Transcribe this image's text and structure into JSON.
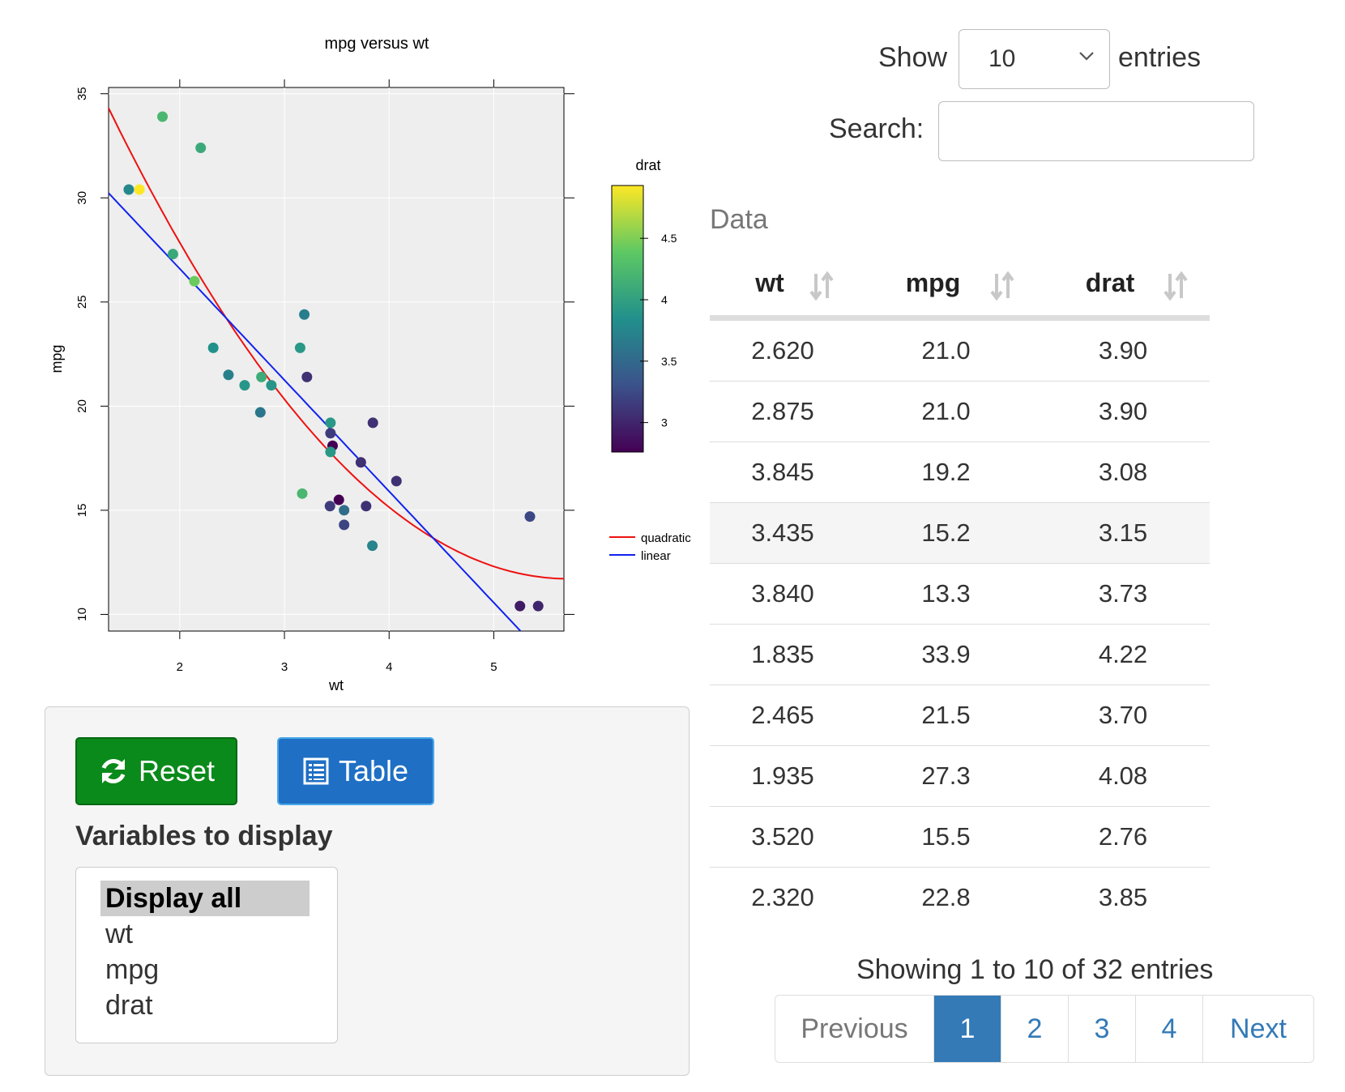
{
  "chart_data": {
    "type": "scatter",
    "title": "mpg versus wt",
    "xlabel": "wt",
    "ylabel": "mpg",
    "xlim": [
      1.32,
      5.67
    ],
    "ylim": [
      9.2,
      35.3
    ],
    "xticks": [
      2,
      3,
      4,
      5
    ],
    "yticks": [
      10,
      15,
      20,
      25,
      30,
      35
    ],
    "grid": true,
    "color_variable": "drat",
    "colorbar": {
      "title": "drat",
      "range": [
        2.76,
        4.93
      ],
      "ticks": [
        3,
        3.5,
        4,
        4.5
      ]
    },
    "points": [
      {
        "wt": 2.62,
        "mpg": 21.0,
        "drat": 3.9
      },
      {
        "wt": 2.875,
        "mpg": 21.0,
        "drat": 3.9
      },
      {
        "wt": 2.32,
        "mpg": 22.8,
        "drat": 3.85
      },
      {
        "wt": 3.215,
        "mpg": 21.4,
        "drat": 3.08
      },
      {
        "wt": 3.44,
        "mpg": 18.7,
        "drat": 3.15
      },
      {
        "wt": 3.46,
        "mpg": 18.1,
        "drat": 2.76
      },
      {
        "wt": 3.57,
        "mpg": 14.3,
        "drat": 3.21
      },
      {
        "wt": 3.19,
        "mpg": 24.4,
        "drat": 3.69
      },
      {
        "wt": 3.15,
        "mpg": 22.8,
        "drat": 3.92
      },
      {
        "wt": 3.44,
        "mpg": 19.2,
        "drat": 3.92
      },
      {
        "wt": 3.44,
        "mpg": 17.8,
        "drat": 3.92
      },
      {
        "wt": 4.07,
        "mpg": 16.4,
        "drat": 3.07
      },
      {
        "wt": 3.73,
        "mpg": 17.3,
        "drat": 3.07
      },
      {
        "wt": 3.78,
        "mpg": 15.2,
        "drat": 3.07
      },
      {
        "wt": 5.25,
        "mpg": 10.4,
        "drat": 2.93
      },
      {
        "wt": 5.424,
        "mpg": 10.4,
        "drat": 3.0
      },
      {
        "wt": 5.345,
        "mpg": 14.7,
        "drat": 3.23
      },
      {
        "wt": 2.2,
        "mpg": 32.4,
        "drat": 4.08
      },
      {
        "wt": 1.615,
        "mpg": 30.4,
        "drat": 4.93
      },
      {
        "wt": 1.835,
        "mpg": 33.9,
        "drat": 4.22
      },
      {
        "wt": 2.465,
        "mpg": 21.5,
        "drat": 3.7
      },
      {
        "wt": 3.52,
        "mpg": 15.5,
        "drat": 2.76
      },
      {
        "wt": 3.435,
        "mpg": 15.2,
        "drat": 3.15
      },
      {
        "wt": 3.84,
        "mpg": 13.3,
        "drat": 3.73
      },
      {
        "wt": 3.845,
        "mpg": 19.2,
        "drat": 3.08
      },
      {
        "wt": 1.935,
        "mpg": 27.3,
        "drat": 4.08
      },
      {
        "wt": 2.14,
        "mpg": 26.0,
        "drat": 4.43
      },
      {
        "wt": 1.513,
        "mpg": 30.4,
        "drat": 3.77
      },
      {
        "wt": 3.17,
        "mpg": 15.8,
        "drat": 4.22
      },
      {
        "wt": 2.77,
        "mpg": 19.7,
        "drat": 3.62
      },
      {
        "wt": 3.57,
        "mpg": 15.0,
        "drat": 3.54
      },
      {
        "wt": 2.78,
        "mpg": 21.4,
        "drat": 4.11
      }
    ],
    "fits": [
      {
        "name": "quadratic",
        "color": "#ee1111",
        "coefficients": [
          49.93,
          -13.38,
          1.171
        ]
      },
      {
        "name": "linear",
        "color": "#1122ee",
        "coefficients": [
          37.285,
          -5.344
        ]
      }
    ]
  },
  "controls": {
    "reset_label": "Reset",
    "table_label": "Table",
    "reset_icon": "refresh-icon",
    "table_icon": "list-alt-icon",
    "variables_label": "Variables to display",
    "variable_options": [
      "Display all",
      "wt",
      "mpg",
      "drat"
    ],
    "selected_option": "Display all"
  },
  "table": {
    "length_prefix": "Show",
    "length_value": "10",
    "length_suffix": "entries",
    "search_label": "Search:",
    "search_value": "",
    "caption": "Data",
    "columns": [
      "wt",
      "mpg",
      "drat"
    ],
    "rows": [
      [
        "2.620",
        "21.0",
        "3.90"
      ],
      [
        "2.875",
        "21.0",
        "3.90"
      ],
      [
        "3.845",
        "19.2",
        "3.08"
      ],
      [
        "3.435",
        "15.2",
        "3.15"
      ],
      [
        "3.840",
        "13.3",
        "3.73"
      ],
      [
        "1.835",
        "33.9",
        "4.22"
      ],
      [
        "2.465",
        "21.5",
        "3.70"
      ],
      [
        "1.935",
        "27.3",
        "4.08"
      ],
      [
        "3.520",
        "15.5",
        "2.76"
      ],
      [
        "2.320",
        "22.8",
        "3.85"
      ]
    ],
    "info": "Showing 1 to 10 of 32 entries",
    "pagination": {
      "previous": "Previous",
      "pages": [
        "1",
        "2",
        "3",
        "4"
      ],
      "active_page": "1",
      "next": "Next"
    }
  },
  "colors": {
    "reset_button": "#0a8a1a",
    "table_button": "#1f6fc5",
    "page_active": "#337ab7",
    "panel_bg": "#eeeeee",
    "viridis": [
      "#440154",
      "#3b528b",
      "#21908c",
      "#5dc863",
      "#fde725"
    ]
  }
}
